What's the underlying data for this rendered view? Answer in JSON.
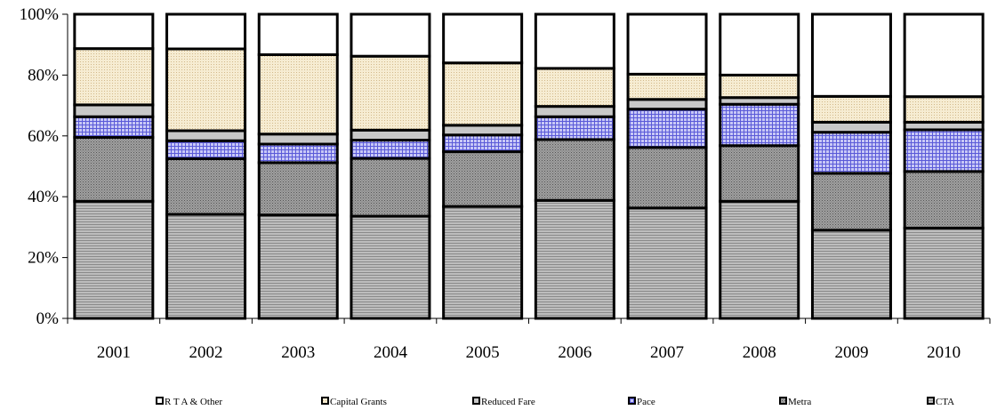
{
  "chart_data": {
    "type": "bar",
    "stacked": true,
    "percent": true,
    "categories": [
      "2001",
      "2002",
      "2003",
      "2004",
      "2005",
      "2006",
      "2007",
      "2008",
      "2009",
      "2010"
    ],
    "series": [
      {
        "name": "CTA",
        "color": "#a8a8a8",
        "pattern": "hlines",
        "values": [
          38.5,
          34.2,
          34.0,
          33.6,
          36.8,
          38.8,
          36.3,
          38.5,
          29.0,
          29.7
        ]
      },
      {
        "name": "Metra",
        "color": "#8c8c8c",
        "pattern": "dots",
        "values": [
          21.0,
          18.3,
          17.2,
          19.0,
          18.0,
          20.0,
          19.9,
          18.3,
          18.7,
          18.6
        ]
      },
      {
        "name": "Pace",
        "color": "#b4b4ee",
        "pattern": "grid",
        "values": [
          6.8,
          5.9,
          6.1,
          6.0,
          5.5,
          7.5,
          12.6,
          13.6,
          13.5,
          13.7
        ]
      },
      {
        "name": "Reduced Fare",
        "color": "#c8c8c8",
        "pattern": "solid",
        "values": [
          3.9,
          3.3,
          3.3,
          3.3,
          3.2,
          3.4,
          3.2,
          2.2,
          3.3,
          2.5
        ]
      },
      {
        "name": "Capital Grants",
        "color": "#f2e6c8",
        "pattern": "fine-dots",
        "values": [
          18.5,
          26.9,
          26.1,
          24.3,
          20.5,
          12.5,
          8.3,
          7.4,
          8.5,
          8.4
        ]
      },
      {
        "name": "R T A & Other",
        "color": "#ffffff",
        "pattern": "solid",
        "values": [
          11.3,
          11.4,
          13.3,
          13.8,
          16.0,
          17.8,
          19.7,
          20.0,
          27.0,
          27.1
        ]
      }
    ],
    "legend_order": [
      "R T A & Other",
      "Capital Grants",
      "Reduced Fare",
      "Pace",
      "Metra",
      "CTA"
    ],
    "y_ticks": [
      "0%",
      "20%",
      "40%",
      "60%",
      "80%",
      "100%"
    ],
    "ylim": [
      0,
      100
    ],
    "title": "",
    "xlabel": "",
    "ylabel": "",
    "grid": false,
    "legend_position": "bottom"
  }
}
